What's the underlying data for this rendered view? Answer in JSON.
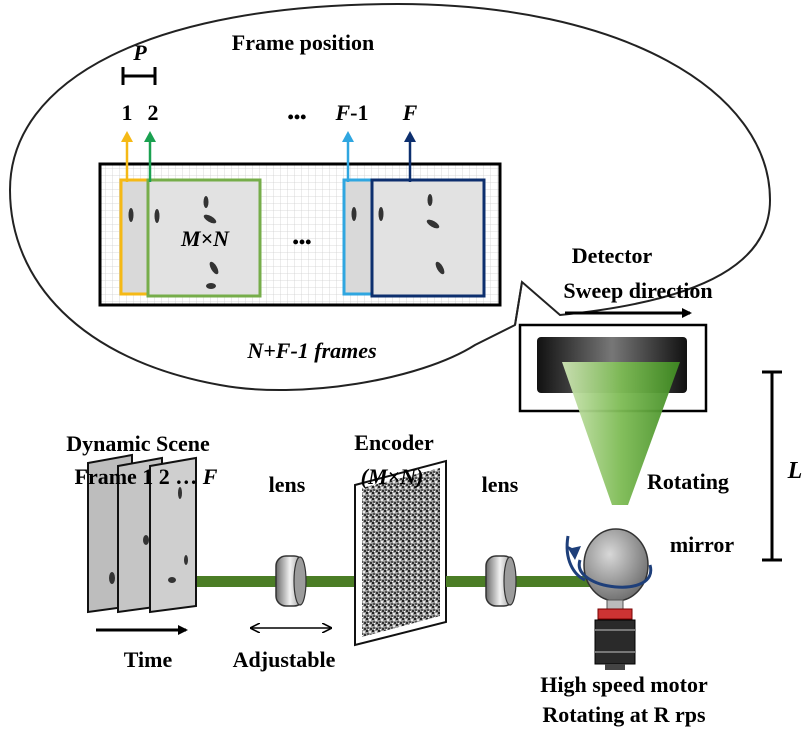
{
  "bubble": {
    "title": "Frame position",
    "pitch_label": "P",
    "pos_1": "1",
    "pos_2": "2",
    "pos_ellipsis": "•••",
    "pos_f_minus_1_a": "F",
    "pos_f_minus_1_b": "-1",
    "pos_f": "F",
    "frame_size": "M×N",
    "frames_ellipsis": "•••",
    "frames_count": "N+F-1 frames",
    "frame_colors": [
      "#f5b916",
      "#1aa150",
      "#2fa6e0",
      "#0d2f6e"
    ],
    "frame_green": "#76ad4a"
  },
  "detector": {
    "title_line1": "Detector",
    "title_line2": "Sweep direction"
  },
  "distance_label": "L",
  "scene": {
    "line1": "Dynamic Scene",
    "line2_a": "Frame 1 2 … ",
    "line2_b": "F"
  },
  "time_label": "Time",
  "lens1_label": "lens",
  "adjustable_label": "Adjustable",
  "encoder": {
    "line1": "Encoder",
    "line2": "(M×N)"
  },
  "lens2_label": "lens",
  "mirror": {
    "line1": "Rotating",
    "line2": "mirror"
  },
  "motor": {
    "line1": "High speed motor",
    "line2": "Rotating at R rps"
  },
  "colors": {
    "rod": "#4b7d25",
    "beam": "#5fae3a",
    "arrow": "#1e3f7a"
  }
}
